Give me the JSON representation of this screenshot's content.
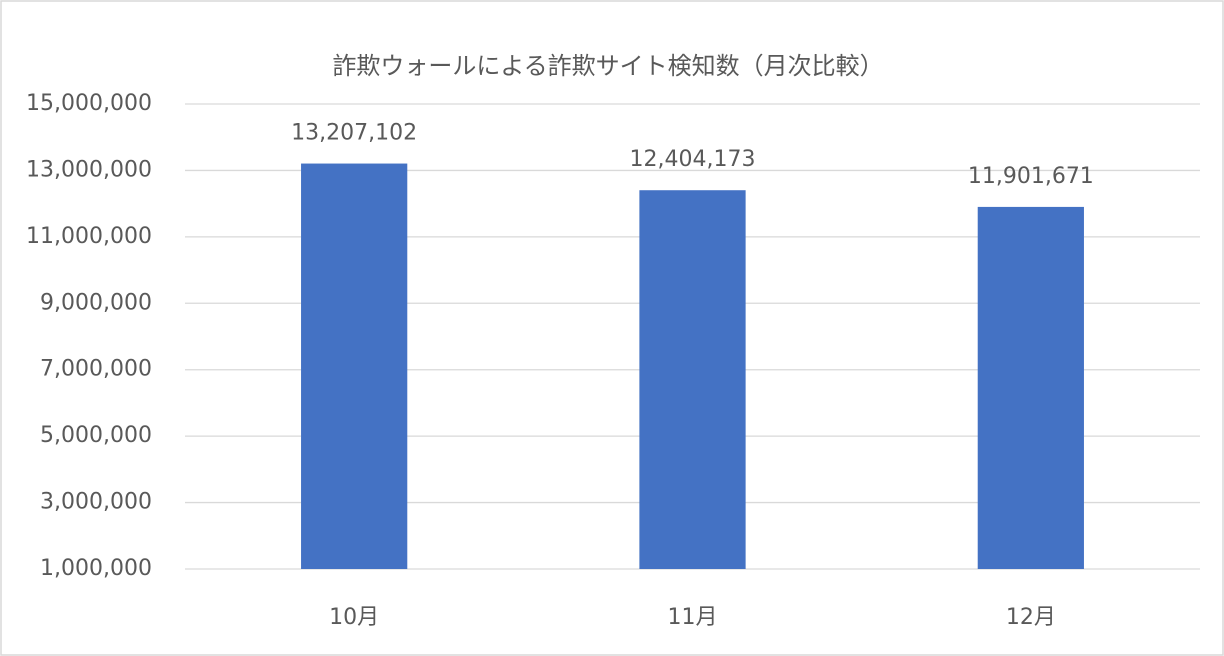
{
  "chart_data": {
    "type": "bar",
    "title": "詐欺ウォールによる詐欺サイト検知数（月次比較）",
    "categories": [
      "10月",
      "11月",
      "12月"
    ],
    "values": [
      13207102,
      12404173,
      11901671
    ],
    "value_labels": [
      "13,207,102",
      "12,404,173",
      "11,901,671"
    ],
    "color": "#4472c4",
    "ylim": [
      1000000,
      15000000
    ],
    "yticks": [
      {
        "value": 1000000,
        "label": "1,000,000"
      },
      {
        "value": 3000000,
        "label": "3,000,000"
      },
      {
        "value": 5000000,
        "label": "5,000,000"
      },
      {
        "value": 7000000,
        "label": "7,000,000"
      },
      {
        "value": 9000000,
        "label": "9,000,000"
      },
      {
        "value": 11000000,
        "label": "11,000,000"
      },
      {
        "value": 13000000,
        "label": "13,000,000"
      },
      {
        "value": 15000000,
        "label": "15,000,000"
      }
    ],
    "grid": true
  }
}
